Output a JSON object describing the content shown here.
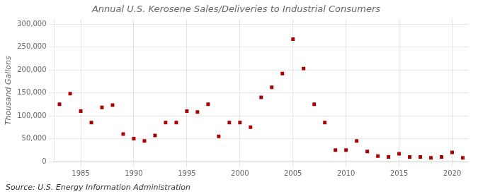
{
  "chart_data": {
    "type": "scatter",
    "title": "Annual U.S. Kerosene Sales/Deliveries to Industrial Consumers",
    "ylabel": "Thousand Gallons",
    "annotations": [
      "Source: U.S. Energy Information Administration"
    ],
    "x": [
      1983,
      1984,
      1985,
      1986,
      1987,
      1988,
      1989,
      1990,
      1991,
      1992,
      1993,
      1994,
      1995,
      1996,
      1997,
      1998,
      1999,
      2000,
      2001,
      2002,
      2003,
      2004,
      2005,
      2006,
      2007,
      2008,
      2009,
      2010,
      2011,
      2012,
      2013,
      2014,
      2015,
      2016,
      2017,
      2018,
      2019,
      2020,
      2021
    ],
    "values": [
      125000,
      148000,
      110000,
      85000,
      118000,
      123000,
      60000,
      50000,
      45000,
      57000,
      85000,
      85000,
      110000,
      108000,
      125000,
      55000,
      85000,
      85000,
      75000,
      140000,
      162000,
      192000,
      267000,
      203000,
      125000,
      85000,
      25000,
      25000,
      45000,
      22000,
      12000,
      10000,
      17000,
      10000,
      10000,
      8000,
      10000,
      20000,
      8000
    ],
    "color": "#aa0000",
    "marker": "square",
    "xlim": [
      1982.5,
      2021.5
    ],
    "xticks": [
      1985,
      1990,
      1995,
      2000,
      2005,
      2010,
      2015,
      2020
    ],
    "ylim": [
      0,
      310000
    ],
    "yticks": [
      0,
      {
        "value": 50000,
        "label": "50,000"
      },
      {
        "value": 100000,
        "label": "100,000"
      },
      {
        "value": 150000,
        "label": "150,000"
      },
      {
        "value": 200000,
        "label": "200,000"
      },
      {
        "value": 250000,
        "label": "250,000"
      },
      {
        "value": 300000,
        "label": "300,000"
      }
    ],
    "grid": true
  }
}
